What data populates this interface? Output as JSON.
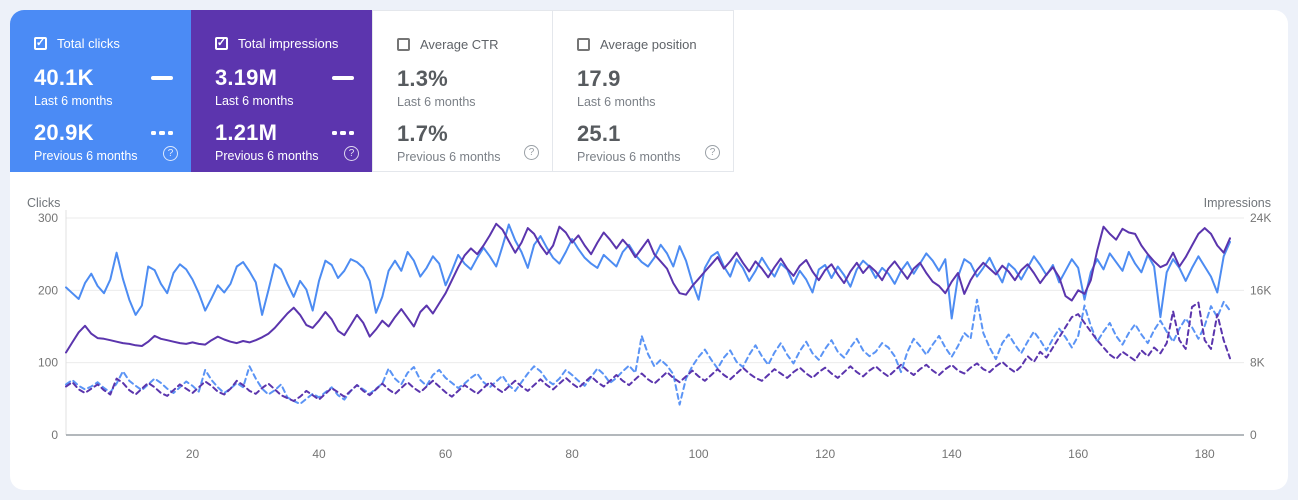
{
  "page": {
    "background": "#edf1f9",
    "panel_background": "#ffffff"
  },
  "cards": [
    {
      "id": "total-clicks",
      "label": "Total clicks",
      "checked": true,
      "bg": "#4b8bf5",
      "value_last": "40.1K",
      "caption_last": "Last 6 months",
      "value_prev": "20.9K",
      "caption_prev": "Previous 6 months",
      "help_glyph": "?"
    },
    {
      "id": "total-impressions",
      "label": "Total impressions",
      "checked": true,
      "bg": "#5c35ae",
      "value_last": "3.19M",
      "caption_last": "Last 6 months",
      "value_prev": "1.21M",
      "caption_prev": "Previous 6 months",
      "help_glyph": "?"
    },
    {
      "id": "average-ctr",
      "label": "Average CTR",
      "checked": false,
      "bg": "#ffffff",
      "value_last": "1.3%",
      "caption_last": "Last 6 months",
      "value_prev": "1.7%",
      "caption_prev": "Previous 6 months",
      "help_glyph": "?"
    },
    {
      "id": "average-position",
      "label": "Average position",
      "checked": false,
      "bg": "#ffffff",
      "value_last": "17.9",
      "caption_last": "Last 6 months",
      "value_prev": "25.1",
      "caption_prev": "Previous 6 months",
      "help_glyph": "?"
    }
  ],
  "checkmark": "✓",
  "chart_data": {
    "type": "line",
    "left_axis": {
      "title": "Clicks",
      "min": 0,
      "max": 300,
      "ticks": [
        300,
        200,
        100,
        0
      ],
      "tick_labels": [
        "300",
        "200",
        "100",
        "0"
      ]
    },
    "right_axis": {
      "title": "Impressions",
      "min": 0,
      "max": 24000,
      "ticks": [
        24000,
        16000,
        8000,
        0
      ],
      "tick_labels": [
        "24K",
        "16K",
        "8K",
        "0"
      ]
    },
    "x_axis": {
      "min": 0,
      "max": 184,
      "tick_values": [
        20,
        40,
        60,
        80,
        100,
        120,
        140,
        160,
        180
      ],
      "tick_labels": [
        "20",
        "40",
        "60",
        "80",
        "100",
        "120",
        "140",
        "160",
        "180"
      ],
      "grid": false
    },
    "grid": "horizontal",
    "legend_position": "none",
    "series": [
      {
        "name": "Clicks - Last 6 months",
        "axis": "left",
        "color": "#4d8cf2",
        "dashed": false,
        "values": [
          204,
          196,
          188,
          210,
          223,
          206,
          196,
          215,
          252,
          216,
          187,
          166,
          179,
          233,
          228,
          209,
          196,
          224,
          236,
          229,
          215,
          196,
          172,
          189,
          207,
          197,
          209,
          233,
          239,
          226,
          211,
          166,
          200,
          236,
          229,
          209,
          191,
          213,
          201,
          172,
          213,
          241,
          235,
          217,
          227,
          243,
          239,
          231,
          213,
          169,
          191,
          227,
          241,
          227,
          253,
          241,
          219,
          231,
          247,
          237,
          207,
          227,
          249,
          237,
          229,
          245,
          259,
          247,
          233,
          261,
          291,
          269,
          253,
          231,
          263,
          275,
          259,
          245,
          237,
          253,
          271,
          257,
          245,
          237,
          231,
          249,
          241,
          233,
          253,
          263,
          249,
          239,
          233,
          245,
          263,
          251,
          233,
          261,
          241,
          211,
          187,
          231,
          247,
          253,
          233,
          219,
          243,
          231,
          213,
          227,
          245,
          231,
          219,
          237,
          229,
          209,
          227,
          215,
          197,
          229,
          235,
          217,
          233,
          221,
          205,
          229,
          241,
          233,
          217,
          231,
          223,
          209,
          227,
          239,
          223,
          237,
          251,
          241,
          227,
          243,
          161,
          219,
          243,
          237,
          219,
          231,
          245,
          227,
          211,
          237,
          229,
          215,
          231,
          247,
          235,
          221,
          235,
          211,
          227,
          243,
          231,
          187,
          225,
          243,
          229,
          251,
          239,
          227,
          253,
          237,
          225,
          249,
          233,
          163,
          225,
          243,
          231,
          213,
          231,
          247,
          233,
          219,
          197,
          247,
          267
        ]
      },
      {
        "name": "Impressions - Last 6 months",
        "axis": "right",
        "color": "#5b35ad",
        "dashed": false,
        "values": [
          9120,
          10240,
          11360,
          12080,
          11200,
          10720,
          10640,
          10480,
          10320,
          10160,
          10080,
          9920,
          9840,
          10320,
          10960,
          10640,
          10480,
          10320,
          10160,
          10080,
          10240,
          10080,
          10000,
          10480,
          10880,
          10560,
          10320,
          10160,
          10400,
          10240,
          10480,
          10800,
          11200,
          11840,
          12640,
          13440,
          14080,
          13280,
          12160,
          11840,
          12640,
          13600,
          12800,
          11520,
          11040,
          12160,
          13280,
          12400,
          10880,
          11680,
          12640,
          12000,
          13040,
          13920,
          12960,
          12000,
          13600,
          14320,
          13440,
          14560,
          15680,
          17120,
          18560,
          19840,
          20640,
          20000,
          20960,
          22080,
          23360,
          22720,
          21440,
          20160,
          21280,
          22880,
          22240,
          20960,
          20000,
          20960,
          23040,
          22400,
          21280,
          22080,
          20960,
          20000,
          21280,
          22400,
          21600,
          20640,
          21600,
          20800,
          19680,
          20640,
          21600,
          20000,
          19200,
          18400,
          16800,
          15680,
          15520,
          16480,
          17280,
          18080,
          18880,
          19680,
          18400,
          19200,
          20160,
          19040,
          18080,
          19200,
          18400,
          17440,
          18560,
          19520,
          18400,
          17600,
          18720,
          19360,
          18080,
          17120,
          18240,
          18880,
          17760,
          16800,
          18080,
          19040,
          17920,
          18720,
          18080,
          17120,
          18400,
          19200,
          18240,
          17280,
          18400,
          19040,
          17920,
          16960,
          16480,
          15680,
          16960,
          17920,
          15600,
          17120,
          18240,
          19040,
          18400,
          17760,
          18720,
          18080,
          17120,
          18240,
          18880,
          17920,
          16800,
          17760,
          18560,
          17440,
          15360,
          14880,
          16000,
          15600,
          17120,
          20400,
          23040,
          22240,
          21600,
          22800,
          22400,
          22240,
          20960,
          20000,
          19200,
          18560,
          18880,
          20160,
          18640,
          19680,
          20960,
          22240,
          22880,
          22240,
          20960,
          20160,
          21760
        ]
      },
      {
        "name": "Clicks - Previous 6 months",
        "axis": "left",
        "color": "#5b94f5",
        "dashed": true,
        "values": [
          70,
          76,
          68,
          63,
          67,
          73,
          65,
          59,
          71,
          88,
          75,
          68,
          62,
          70,
          78,
          72,
          64,
          58,
          66,
          74,
          68,
          60,
          90,
          76,
          66,
          58,
          64,
          72,
          66,
          95,
          78,
          64,
          56,
          62,
          70,
          52,
          47,
          43,
          50,
          57,
          52,
          59,
          66,
          55,
          49,
          61,
          69,
          63,
          57,
          64,
          71,
          92,
          78,
          70,
          86,
          94,
          76,
          68,
          83,
          90,
          79,
          72,
          65,
          71,
          79,
          85,
          73,
          66,
          74,
          82,
          69,
          61,
          73,
          85,
          95,
          88,
          76,
          70,
          78,
          90,
          83,
          75,
          68,
          80,
          92,
          84,
          72,
          79,
          88,
          96,
          86,
          137,
          112,
          95,
          104,
          96,
          84,
          42,
          78,
          95,
          108,
          118,
          104,
          92,
          107,
          117,
          101,
          94,
          111,
          124,
          109,
          97,
          114,
          127,
          111,
          99,
          116,
          129,
          113,
          104,
          119,
          131,
          115,
          107,
          121,
          133,
          117,
          109,
          115,
          127,
          121,
          109,
          87,
          115,
          133,
          123,
          111,
          125,
          137,
          121,
          108,
          123,
          141,
          133,
          187,
          141,
          121,
          105,
          127,
          139,
          125,
          113,
          129,
          143,
          131,
          117,
          133,
          147,
          135,
          121,
          137,
          179,
          151,
          129,
          143,
          155,
          137,
          125,
          141,
          153,
          139,
          127,
          145,
          158,
          143,
          129,
          147,
          161,
          149,
          133,
          151,
          178,
          163,
          184,
          172
        ]
      },
      {
        "name": "Impressions - Previous 6 months",
        "axis": "right",
        "color": "#5b35ad",
        "dashed": true,
        "values": [
          5360,
          5840,
          5040,
          4640,
          5120,
          5600,
          4960,
          4480,
          6240,
          5760,
          4960,
          4480,
          5120,
          5760,
          5280,
          4640,
          4320,
          4960,
          5600,
          5120,
          4640,
          5280,
          5920,
          5440,
          4800,
          4480,
          5120,
          6000,
          5520,
          4880,
          4560,
          5200,
          5680,
          5040,
          4400,
          4080,
          3760,
          4240,
          4880,
          4400,
          3920,
          4560,
          5200,
          4720,
          4240,
          4880,
          5520,
          4880,
          4400,
          5040,
          5680,
          5040,
          4560,
          5200,
          5840,
          5200,
          4720,
          5360,
          6000,
          5360,
          4720,
          4240,
          4880,
          5520,
          5040,
          4560,
          5200,
          5840,
          5200,
          4720,
          5360,
          6000,
          5360,
          4880,
          5520,
          6160,
          5520,
          5040,
          5680,
          6320,
          5680,
          5200,
          5840,
          6480,
          5840,
          5360,
          6000,
          6640,
          6000,
          5520,
          6160,
          6800,
          6160,
          5680,
          6320,
          6960,
          6320,
          5840,
          6480,
          7120,
          6480,
          6000,
          6640,
          7280,
          6640,
          6160,
          6800,
          7440,
          6800,
          6320,
          6000,
          6640,
          7280,
          6800,
          6320,
          6960,
          7440,
          6800,
          6320,
          6960,
          7440,
          6800,
          6320,
          6960,
          7600,
          6960,
          6480,
          7120,
          7600,
          6960,
          6480,
          7120,
          7760,
          7120,
          6640,
          7280,
          7760,
          7120,
          6640,
          7280,
          7760,
          7120,
          6800,
          7440,
          7920,
          7280,
          6960,
          7600,
          8080,
          7440,
          6960,
          7600,
          8720,
          8080,
          9200,
          8560,
          9680,
          10800,
          11920,
          13040,
          13360,
          12400,
          11440,
          10480,
          9680,
          8880,
          8400,
          9200,
          8720,
          8240,
          9360,
          8720,
          9680,
          9040,
          10160,
          13680,
          10480,
          9520,
          14160,
          14640,
          10480,
          9520,
          13360,
          10480,
          8480
        ]
      }
    ]
  }
}
